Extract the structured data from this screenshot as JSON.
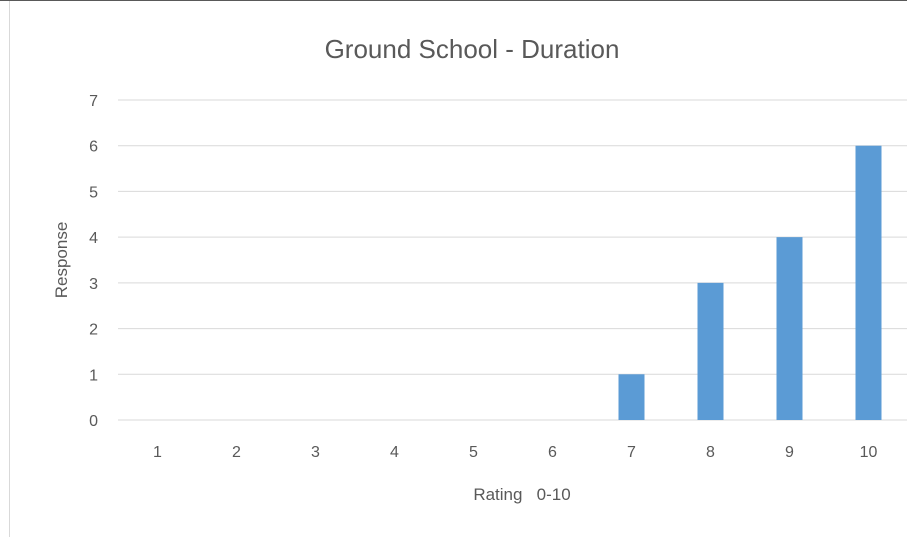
{
  "chart_data": {
    "type": "bar",
    "title": "Ground School - Duration",
    "xlabel": "Rating   0-10",
    "ylabel": "Response",
    "categories": [
      "1",
      "2",
      "3",
      "4",
      "5",
      "6",
      "7",
      "8",
      "9",
      "10"
    ],
    "values": [
      0,
      0,
      0,
      0,
      0,
      0,
      1,
      3,
      4,
      6
    ],
    "ylim": [
      0,
      7
    ],
    "yticks": [
      "0",
      "1",
      "2",
      "3",
      "4",
      "5",
      "6",
      "7"
    ],
    "grid": true,
    "legend": "none",
    "colors": {
      "bar": "#5b9bd5",
      "grid": "#d9d9d9",
      "text": "#595959"
    }
  }
}
